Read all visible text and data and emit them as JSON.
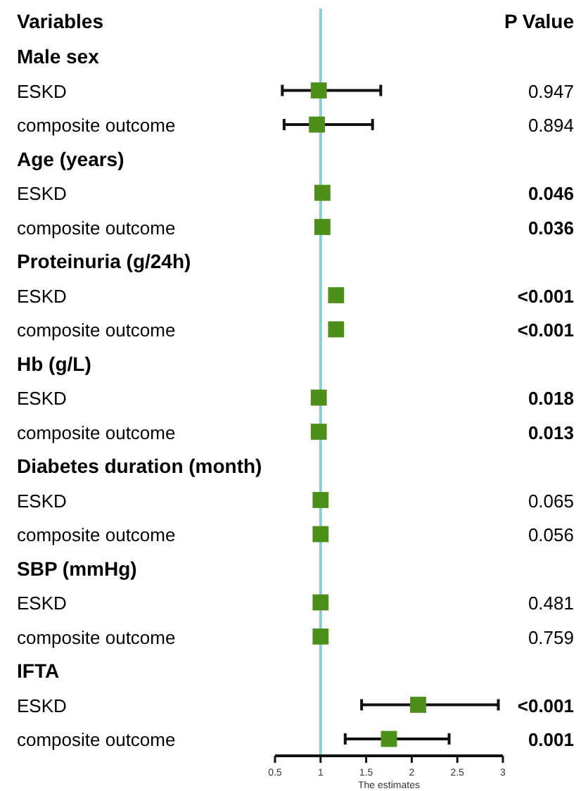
{
  "chart_data": {
    "type": "scatter",
    "orientation": "horizontal",
    "ylabel": "Variables",
    "y2label": "P Value",
    "xlabel": "The estimates",
    "marker": "square",
    "color": "#4e8f1c",
    "categories": [
      "Male sex",
      "ESKD",
      "composite outcome",
      "Age (years)",
      "ESKD",
      "composite outcome",
      "Proteinuria (g/24h)",
      "ESKD",
      "composite outcome",
      "Hb (g/L)",
      "ESKD",
      "composite outcome",
      "Diabetes duration (month)",
      "ESKD",
      "composite outcome",
      "SBP (mmHg)",
      "ESKD",
      "composite outcome",
      "IFTA",
      "ESKD",
      "composite outcome"
    ],
    "values": [
      null,
      0.98,
      0.96,
      null,
      1.02,
      1.02,
      null,
      1.17,
      1.17,
      null,
      0.98,
      0.98,
      null,
      1.0,
      1.0,
      null,
      1.0,
      1.0,
      null,
      2.07,
      1.75
    ],
    "errors": [
      null,
      [
        0.58,
        1.66
      ],
      [
        0.6,
        1.57
      ],
      null,
      null,
      null,
      null,
      null,
      null,
      null,
      null,
      null,
      null,
      null,
      null,
      null,
      null,
      null,
      null,
      [
        1.45,
        2.95
      ],
      [
        1.27,
        2.41
      ]
    ],
    "annotations": [
      null,
      "0.947",
      "0.894",
      null,
      "0.046",
      "0.036",
      null,
      "<0.001",
      "<0.001",
      null,
      "0.018",
      "0.013",
      null,
      "0.065",
      "0.056",
      null,
      "0.481",
      "0.759",
      null,
      "<0.001",
      "0.001"
    ],
    "xlim": [
      0.5,
      3
    ],
    "xticks": [
      0.5,
      1,
      1.5,
      2,
      2.5,
      3
    ],
    "ref_lines": [
      {
        "axis": "x",
        "value": 1,
        "color": "#8ecbd6"
      }
    ]
  }
}
